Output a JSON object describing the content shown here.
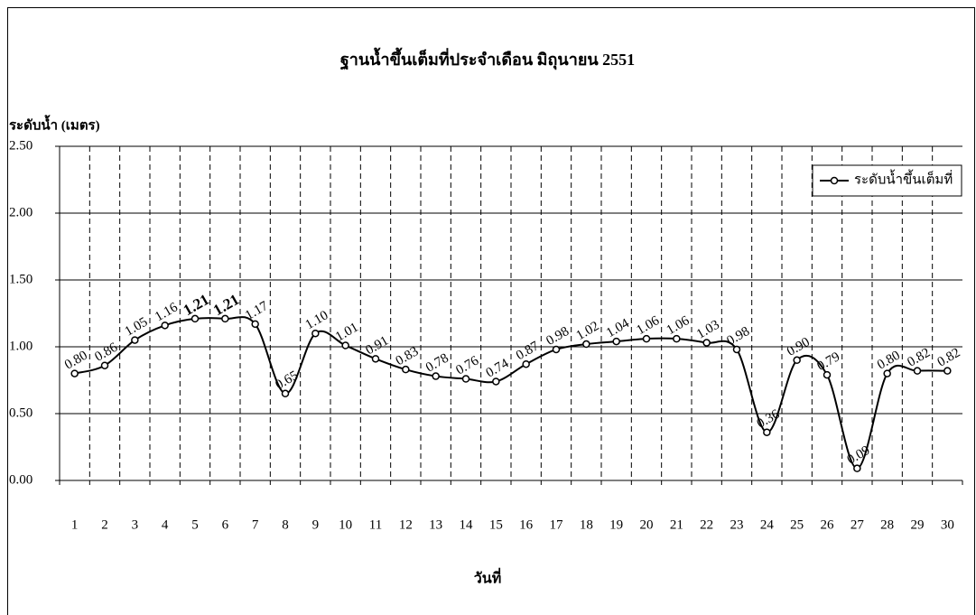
{
  "chart_data": {
    "type": "line",
    "title": "ฐานน้ำขึ้นเต็มที่ประจำเดือน มิถุนายน 2551",
    "y_label": "ระดับน้ำ (เมตร)",
    "x_label": "วันที่",
    "categories": [
      "1",
      "2",
      "3",
      "4",
      "5",
      "6",
      "7",
      "8",
      "9",
      "10",
      "11",
      "12",
      "13",
      "14",
      "15",
      "16",
      "17",
      "18",
      "19",
      "20",
      "21",
      "22",
      "23",
      "24",
      "25",
      "26",
      "27",
      "28",
      "29",
      "30"
    ],
    "series": [
      {
        "name": "ระดับน้ำขึ้นเต็มที่",
        "color": "#000000",
        "values": [
          0.8,
          0.86,
          1.05,
          1.16,
          1.21,
          1.21,
          1.17,
          0.65,
          1.1,
          1.01,
          0.91,
          0.83,
          0.78,
          0.76,
          0.74,
          0.87,
          0.98,
          1.02,
          1.04,
          1.06,
          1.06,
          1.03,
          0.98,
          0.36,
          0.9,
          0.79,
          0.09,
          0.8,
          0.82,
          0.82
        ],
        "value_labels": [
          "0.80",
          "0.86",
          "1.05",
          "1.16",
          "1.21",
          "1.21",
          "1.17",
          "0.65",
          "1.10",
          "1.01",
          "0.91",
          "0.83",
          "0.78",
          "0.76",
          "0.74",
          "0.87",
          "0.98",
          "1.02",
          "1.04",
          "1.06",
          "1.06",
          "1.03",
          "0.98",
          "0.36",
          "0.90",
          "0.79",
          "0.09",
          "0.80",
          "0.82",
          "0.82"
        ]
      }
    ],
    "ylim": [
      0,
      2.5
    ],
    "yticks": [
      {
        "value": 0,
        "label": "0.00"
      },
      {
        "value": 0.5,
        "label": "0.50"
      },
      {
        "value": 1,
        "label": "1.00"
      },
      {
        "value": 1.5,
        "label": "1.50"
      },
      {
        "value": 2,
        "label": "2.00"
      },
      {
        "value": 2.5,
        "label": "2.50"
      }
    ],
    "grid": true,
    "smooth": true,
    "legend": "top-right"
  }
}
